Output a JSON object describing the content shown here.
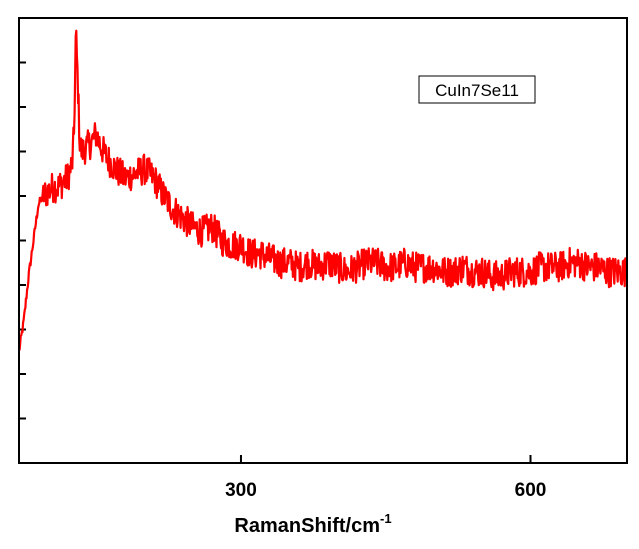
{
  "chart_data": {
    "type": "line",
    "title": "",
    "xlabel": "RamanShift/cm",
    "xlabel_superscript": "-1",
    "ylabel": "",
    "xlim": [
      70,
      700
    ],
    "ylim": [
      0,
      1
    ],
    "xticks": [
      300,
      600
    ],
    "xtick_labels": [
      "300",
      "600"
    ],
    "yticks": [
      0.1,
      0.2,
      0.3,
      0.4,
      0.5,
      0.6,
      0.7,
      0.8,
      0.9,
      1.0
    ],
    "ytick_labels": [],
    "grid": false,
    "legend": {
      "position": "top-right",
      "entries": [
        "CuIn7Se11"
      ]
    },
    "series": [
      {
        "name": "CuIn7Se11",
        "color": "#ff0000",
        "x": [
          70,
          75,
          80,
          85,
          90,
          95,
          100,
          105,
          110,
          115,
          120,
          125,
          127,
          129,
          131,
          133,
          135,
          140,
          145,
          150,
          155,
          160,
          170,
          180,
          190,
          200,
          210,
          220,
          230,
          240,
          250,
          260,
          270,
          280,
          290,
          300,
          310,
          320,
          330,
          340,
          350,
          360,
          370,
          380,
          390,
          400,
          410,
          420,
          430,
          440,
          450,
          460,
          470,
          480,
          490,
          500,
          510,
          520,
          530,
          540,
          550,
          560,
          570,
          580,
          590,
          600,
          610,
          620,
          630,
          640,
          650,
          660,
          670,
          680,
          690,
          700
        ],
        "y": [
          0.25,
          0.32,
          0.42,
          0.5,
          0.58,
          0.6,
          0.61,
          0.62,
          0.62,
          0.63,
          0.64,
          0.67,
          0.74,
          0.97,
          0.85,
          0.72,
          0.7,
          0.71,
          0.72,
          0.74,
          0.71,
          0.69,
          0.66,
          0.64,
          0.65,
          0.66,
          0.64,
          0.6,
          0.57,
          0.55,
          0.53,
          0.52,
          0.53,
          0.5,
          0.49,
          0.49,
          0.47,
          0.47,
          0.46,
          0.45,
          0.45,
          0.44,
          0.45,
          0.44,
          0.45,
          0.44,
          0.43,
          0.44,
          0.45,
          0.45,
          0.44,
          0.44,
          0.45,
          0.44,
          0.44,
          0.44,
          0.43,
          0.43,
          0.44,
          0.43,
          0.43,
          0.42,
          0.42,
          0.43,
          0.43,
          0.43,
          0.44,
          0.44,
          0.44,
          0.45,
          0.45,
          0.44,
          0.44,
          0.43,
          0.43,
          0.43
        ]
      }
    ]
  }
}
